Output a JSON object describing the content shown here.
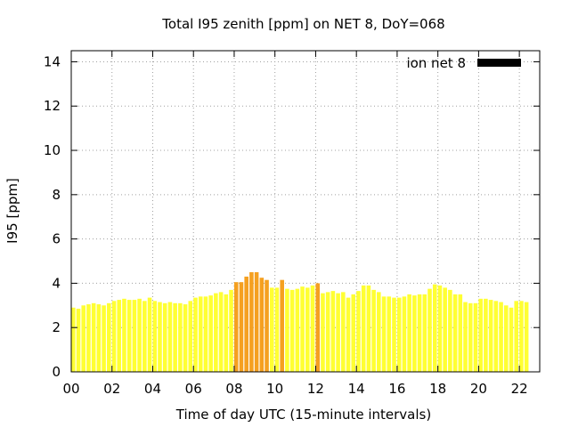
{
  "chart_data": {
    "type": "bar",
    "title": "Total I95 zenith [ppm] on NET 8, DoY=068",
    "xlabel": "Time of day UTC (15-minute intervals)",
    "ylabel": "I95 [ppm]",
    "xlim": [
      0,
      23
    ],
    "ylim": [
      0,
      14.5
    ],
    "x_ticks": [
      "00",
      "02",
      "04",
      "06",
      "08",
      "10",
      "12",
      "14",
      "16",
      "18",
      "20",
      "22"
    ],
    "y_ticks": [
      "0",
      "2",
      "4",
      "6",
      "8",
      "10",
      "12",
      "14"
    ],
    "grid": true,
    "legend": {
      "label": "ion net 8",
      "position": "top-right",
      "color": "#000000"
    },
    "bar_interval_hours": 0.25,
    "colors": {
      "low": "#ffff33",
      "mid": "#ffcc00",
      "high": "#f5a020"
    },
    "series": [
      {
        "values": [
          2.9,
          2.85,
          3.0,
          3.05,
          3.1,
          3.05,
          3.0,
          3.1,
          3.2,
          3.25,
          3.3,
          3.25,
          3.25,
          3.3,
          3.2,
          3.35,
          3.2,
          3.15,
          3.1,
          3.15,
          3.1,
          3.1,
          3.05,
          3.2,
          3.35,
          3.4,
          3.4,
          3.45,
          3.55,
          3.6,
          3.5,
          3.7,
          4.05,
          4.05,
          4.3,
          4.5,
          4.5,
          4.25,
          4.15,
          3.8,
          3.8,
          4.15,
          3.75,
          3.7,
          3.75,
          3.85,
          3.8,
          3.9,
          4.0,
          3.55,
          3.6,
          3.65,
          3.55,
          3.6,
          3.35,
          3.5,
          3.65,
          3.9,
          3.9,
          3.7,
          3.6,
          3.4,
          3.4,
          3.35,
          3.35,
          3.4,
          3.5,
          3.45,
          3.5,
          3.5,
          3.75,
          3.95,
          3.9,
          3.8,
          3.7,
          3.5,
          3.5,
          3.15,
          3.1,
          3.1,
          3.3,
          3.3,
          3.25,
          3.2,
          3.15,
          3.0,
          2.9,
          3.2,
          3.2,
          3.15
        ]
      }
    ]
  }
}
